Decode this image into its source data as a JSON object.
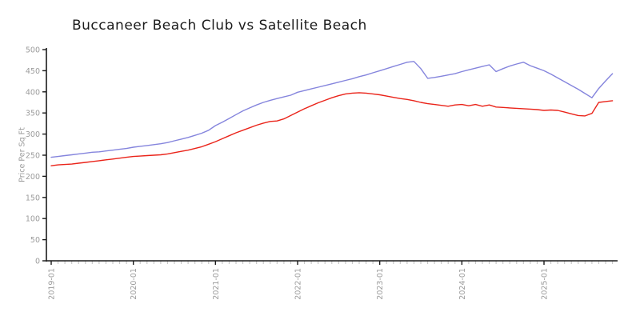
{
  "chart_data": {
    "type": "line",
    "title": "Buccaneer Beach Club vs Satellite Beach",
    "xlabel": "",
    "ylabel": "Price Per Sq Ft",
    "ylim": [
      0,
      500
    ],
    "y_ticks": [
      0,
      50,
      100,
      150,
      200,
      250,
      300,
      350,
      400,
      450,
      500
    ],
    "x_unit": "month",
    "x_start": "2019-01",
    "x_tick_labels": [
      "2019-01",
      "2020-01",
      "2021-01",
      "2022-01",
      "2023-01",
      "2024-01",
      "2025-01"
    ],
    "grid": false,
    "legend": "none",
    "style": "hand-drawn (xkcd-like), left and bottom spines only, gray tick labels, monthly minor ticks",
    "series": [
      {
        "name": "Buccaneer Beach Club",
        "color": "#8585dd",
        "values": [
          245,
          247,
          249,
          251,
          253,
          255,
          257,
          258,
          260,
          262,
          264,
          266,
          269,
          271,
          273,
          275,
          277,
          280,
          284,
          288,
          292,
          297,
          302,
          309,
          320,
          328,
          337,
          346,
          355,
          362,
          369,
          375,
          380,
          384,
          388,
          392,
          399,
          403,
          407,
          411,
          415,
          419,
          423,
          427,
          431,
          436,
          440,
          445,
          450,
          455,
          460,
          465,
          470,
          472,
          455,
          432,
          434,
          437,
          440,
          443,
          448,
          452,
          456,
          460,
          464,
          448,
          455,
          461,
          466,
          470,
          462,
          456,
          450,
          442,
          433,
          424,
          415,
          406,
          396,
          386,
          408,
          426,
          443
        ]
      },
      {
        "name": "Satellite Beach",
        "color": "#ea241a",
        "values": [
          225,
          227,
          228,
          229,
          231,
          233,
          235,
          237,
          239,
          241,
          243,
          245,
          247,
          248,
          249,
          250,
          251,
          253,
          256,
          259,
          262,
          266,
          270,
          276,
          282,
          289,
          296,
          303,
          309,
          315,
          321,
          326,
          330,
          331,
          336,
          344,
          352,
          360,
          367,
          374,
          380,
          386,
          391,
          395,
          397,
          398,
          397,
          395,
          393,
          390,
          387,
          384,
          382,
          379,
          375,
          372,
          370,
          368,
          366,
          369,
          370,
          367,
          370,
          366,
          369,
          364,
          363,
          362,
          361,
          360,
          359,
          358,
          356,
          357,
          356,
          352,
          348,
          344,
          343,
          349,
          375,
          377,
          379
        ]
      }
    ],
    "colors": {
      "axis": "#1a1a1a",
      "tick_label": "#9b9b9b",
      "minor_tick": "#c9c9c9",
      "title": "#1b1b1b"
    }
  }
}
